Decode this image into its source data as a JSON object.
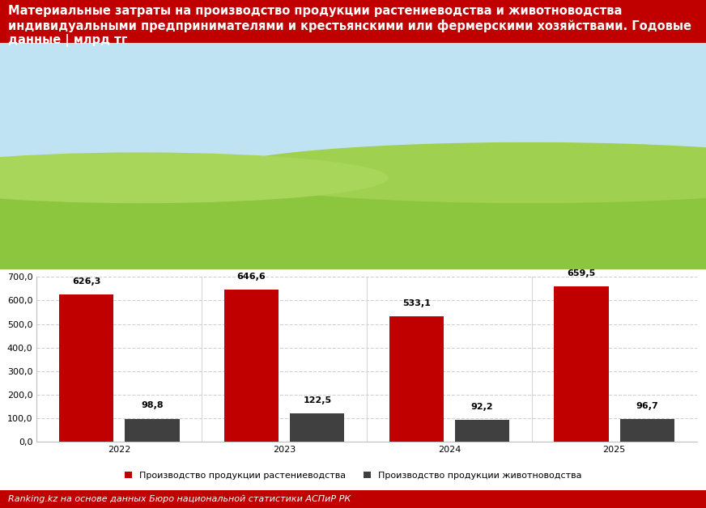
{
  "chart_data": {
    "type": "bar",
    "title": "Материальные затраты на производство продукции растениеводства и животноводства индивидуальными предпринимателями и крестьянскими или фермерскими хозяйствами. Годовые данные | млрд тг",
    "source": "Ranking.kz на основе данных Бюро национальной статистики АСПиР РК",
    "categories": [
      "2022",
      "2023",
      "2024",
      "2025"
    ],
    "series": [
      {
        "name": "Производство продукции растениеводства",
        "color": "#c00000",
        "values": [
          626.3,
          646.6,
          533.1,
          659.5
        ],
        "value_labels": [
          "626,3",
          "646,6",
          "533,1",
          "659,5"
        ]
      },
      {
        "name": "Производство продукции животноводства",
        "color": "#404040",
        "values": [
          98.8,
          122.5,
          92.2,
          96.7
        ],
        "value_labels": [
          "98,8",
          "122,5",
          "92,2",
          "96,7"
        ]
      }
    ],
    "ylim": [
      0,
      700
    ],
    "yticks": [
      {
        "value": 0,
        "label": "0,0"
      },
      {
        "value": 100,
        "label": "100,0"
      },
      {
        "value": 200,
        "label": "200,0"
      },
      {
        "value": 300,
        "label": "300,0"
      },
      {
        "value": 400,
        "label": "400,0"
      },
      {
        "value": 500,
        "label": "500,0"
      },
      {
        "value": 600,
        "label": "600,0"
      },
      {
        "value": 700,
        "label": "700,0"
      }
    ],
    "grid": true,
    "data_labels": true,
    "legend": "lower center"
  }
}
